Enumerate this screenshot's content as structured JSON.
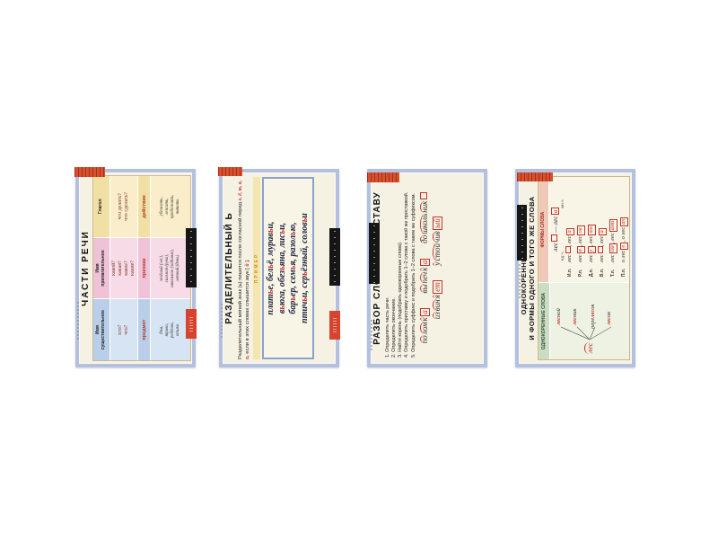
{
  "colors": {
    "frame": "#b3c0e0",
    "paper": "#f6f2e3",
    "accent_red": "#c4342c",
    "orange_strip": "#d8512f",
    "noun_col": "#d7e4f3",
    "adj_col": "#f7dbe7",
    "verb_col": "#f9eec9",
    "yellow_band": "#f3e6ae",
    "green_header": "#ccdcc4",
    "salmon_header": "#f0c8b8",
    "series_bar": "#161616"
  },
  "posters": {
    "p1": {
      "title": "ЧАСТИ РЕЧИ",
      "columns": [
        {
          "header": "Имя\nсуществительное",
          "questions": "кто?\nчто?",
          "category": "предмет",
          "examples": "дом,\nтрава,\nребёнок,\nкошка"
        },
        {
          "header": "Имя\nприлагательное",
          "questions": "какой?\nкакая?\nкакое?\nкакие?",
          "category": "признак",
          "examples": "зелёный (лес),\nсильная (рука),\nшкольное (задание),\nлетний (день)"
        },
        {
          "header": "Глагол",
          "questions": "что делать?\nчто сделать?",
          "category": "действие",
          "examples": "убежать,\nлежать,\nпробежать,\nчитать"
        }
      ]
    },
    "p2": {
      "title": "РАЗДЕЛИТЕЛЬНЫЙ Ь",
      "rule_1": "Разделительный мягкий знак (ь) пишется после согласной перед ",
      "rule_letters": "е, ё, ю, я, и,",
      "rule_2": " если в этих словах слышится звук [ ",
      "rule_sound": "й",
      "rule_3": " ].",
      "example_label": "ПРИМЕР",
      "examples": [
        "платье, бельё, муравьи,",
        "вьюга, обезьяна, лисьи,",
        "барьер, семья, разолью,",
        "птичьи, серьёзный, соловьи"
      ]
    },
    "p3": {
      "title": "РАЗБОР СЛОВА ПО СОСТАВУ",
      "steps": [
        "1. Определить часть речи.",
        "2. Определить окончание.",
        "3. Найти корень (подобрать однокоренные слова).",
        "4. Определить приставку и подобрать 1–2 слова с такой же приставкой.",
        "5. Определить суффикс и подобрать 1–2 слова с таким же суффиксом."
      ],
      "examples_row1": [
        "(по)(лом)(к)[а]",
        "(вы)(печ)(к)[а]",
        "(до)(школь)(ник)[]"
      ],
      "examples_row2": [
        "(из)(вин)(я)[ет]",
        "(у)(стой)(чив)[ый]"
      ]
    },
    "p4": {
      "title_line1": "ОДНОКОРЕННЫЕ СЛОВА",
      "title_line2": "И ФОРМЫ ОДНОГО И ТОГО ЖЕ СЛОВА",
      "left_header": "ОДНОКОРЕННЫЕ СЛОВА",
      "right_header": "ФОРМЫ СЛОВА",
      "root": "лес",
      "derived": [
        "лесной",
        "лесник",
        "перелесок",
        "лесок"
      ],
      "forms_title": "лес[] — лес[а]",
      "number_labels": [
        "ед.ч.",
        "мн.ч."
      ],
      "cases": [
        {
          "label": "И.п.",
          "forms": "лес[], лес[а]"
        },
        {
          "label": "Р.п.",
          "forms": "лес[а], лес[ов]"
        },
        {
          "label": "Д.п.",
          "forms": "лес[у], лес[ам]"
        },
        {
          "label": "В.п.",
          "forms": "лес[], лес[а]"
        },
        {
          "label": "Т.п.",
          "forms": "лес[ом], лес[ами]"
        },
        {
          "label": "П.п.",
          "forms": "о лес[е], о лес[ах]"
        }
      ]
    }
  }
}
